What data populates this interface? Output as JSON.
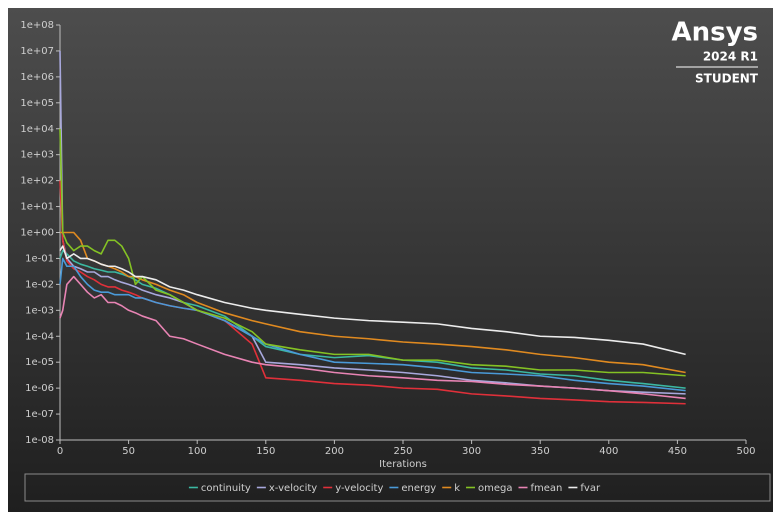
{
  "chart_data": {
    "type": "line",
    "x_label": "Iterations",
    "log_y": true,
    "grid": false,
    "xlim": [
      0,
      500
    ],
    "xticks": [
      0,
      50,
      100,
      150,
      200,
      250,
      300,
      350,
      400,
      450,
      500
    ],
    "ylim": [
      1e-08,
      100000000.0
    ],
    "yticks": [
      {
        "value": 1e-08,
        "label": "1e-08"
      },
      {
        "value": 1e-07,
        "label": "1e-07"
      },
      {
        "value": 1e-06,
        "label": "1e-06"
      },
      {
        "value": 1e-05,
        "label": "1e-05"
      },
      {
        "value": 0.0001,
        "label": "1e-04"
      },
      {
        "value": 0.001,
        "label": "1e-03"
      },
      {
        "value": 0.01,
        "label": "1e-02"
      },
      {
        "value": 0.1,
        "label": "1e-01"
      },
      {
        "value": 1,
        "label": "1e+00"
      },
      {
        "value": 10,
        "label": "1e+01"
      },
      {
        "value": 100,
        "label": "1e+02"
      },
      {
        "value": 1000,
        "label": "1e+03"
      },
      {
        "value": 10000,
        "label": "1e+04"
      },
      {
        "value": 100000,
        "label": "1e+05"
      },
      {
        "value": 1000000,
        "label": "1e+06"
      },
      {
        "value": 10000000,
        "label": "1e+07"
      },
      {
        "value": 100000000,
        "label": "1e+08"
      }
    ],
    "x": [
      0,
      2,
      5,
      10,
      15,
      20,
      25,
      30,
      35,
      40,
      45,
      50,
      55,
      60,
      70,
      80,
      90,
      100,
      120,
      140,
      150,
      175,
      200,
      225,
      250,
      275,
      300,
      325,
      350,
      375,
      400,
      425,
      456
    ],
    "series": [
      {
        "name": "continuity",
        "color": "#3bb8a2",
        "values": [
          0.1,
          0.2,
          0.15,
          0.08,
          0.06,
          0.05,
          0.04,
          0.035,
          0.03,
          0.03,
          0.025,
          0.02,
          0.015,
          0.01,
          0.007,
          0.004,
          0.002,
          0.0015,
          0.0006,
          0.0001,
          4e-05,
          2e-05,
          1.5e-05,
          1.8e-05,
          1.2e-05,
          1e-05,
          6e-06,
          5e-06,
          3.5e-06,
          3e-06,
          2e-06,
          1.5e-06,
          1e-06
        ]
      },
      {
        "name": "x-velocity",
        "color": "#a8a8dc",
        "values": [
          10000000,
          0.5,
          0.1,
          0.05,
          0.04,
          0.03,
          0.03,
          0.02,
          0.02,
          0.015,
          0.012,
          0.01,
          0.008,
          0.006,
          0.004,
          0.003,
          0.002,
          0.001,
          0.0004,
          0.0001,
          1e-05,
          8e-06,
          6e-06,
          5e-06,
          4e-06,
          3e-06,
          2e-06,
          1.6e-06,
          1.2e-06,
          1e-06,
          8e-07,
          7e-07,
          6e-07
        ]
      },
      {
        "name": "y-velocity",
        "color": "#e0303a",
        "values": [
          100,
          0.5,
          0.08,
          0.04,
          0.03,
          0.02,
          0.015,
          0.01,
          0.008,
          0.008,
          0.006,
          0.005,
          0.004,
          0.003,
          0.002,
          0.0015,
          0.0012,
          0.001,
          0.0004,
          5e-05,
          2.5e-06,
          2e-06,
          1.5e-06,
          1.3e-06,
          1e-06,
          9e-07,
          6e-07,
          5e-07,
          4e-07,
          3.5e-07,
          3e-07,
          2.8e-07,
          2.5e-07
        ]
      },
      {
        "name": "energy",
        "color": "#4a9ad8",
        "values": [
          0.01,
          0.1,
          0.05,
          0.05,
          0.02,
          0.01,
          0.006,
          0.005,
          0.005,
          0.004,
          0.004,
          0.004,
          0.003,
          0.003,
          0.002,
          0.0015,
          0.0012,
          0.001,
          0.0004,
          0.0001,
          5e-05,
          2e-05,
          1e-05,
          9e-06,
          8e-06,
          6e-06,
          4e-06,
          3.5e-06,
          3e-06,
          2e-06,
          1.5e-06,
          1.2e-06,
          8e-07
        ]
      },
      {
        "name": "k",
        "color": "#e08a20",
        "values": [
          1,
          1,
          1,
          1,
          0.5,
          0.1,
          0.08,
          0.06,
          0.05,
          0.04,
          0.03,
          0.02,
          0.02,
          0.015,
          0.01,
          0.006,
          0.004,
          0.002,
          0.0008,
          0.0004,
          0.0003,
          0.00015,
          0.0001,
          8e-05,
          6e-05,
          5e-05,
          4e-05,
          3e-05,
          2e-05,
          1.5e-05,
          1e-05,
          8e-06,
          4e-06
        ]
      },
      {
        "name": "omega",
        "color": "#84c224",
        "values": [
          10000,
          1,
          0.4,
          0.2,
          0.3,
          0.3,
          0.2,
          0.15,
          0.5,
          0.5,
          0.3,
          0.1,
          0.01,
          0.02,
          0.006,
          0.004,
          0.002,
          0.001,
          0.0005,
          0.00015,
          5e-05,
          3e-05,
          2e-05,
          2e-05,
          1.2e-05,
          1.2e-05,
          8e-06,
          7e-06,
          5e-06,
          5e-06,
          4e-06,
          4e-06,
          3e-06
        ]
      },
      {
        "name": "fmean",
        "color": "#e884b4",
        "values": [
          0.0005,
          0.001,
          0.01,
          0.02,
          0.01,
          0.005,
          0.003,
          0.004,
          0.002,
          0.002,
          0.0015,
          0.001,
          0.0008,
          0.0006,
          0.0004,
          0.0001,
          8e-05,
          5e-05,
          2e-05,
          1e-05,
          8e-06,
          6e-06,
          4e-06,
          3e-06,
          2.5e-06,
          2e-06,
          1.8e-06,
          1.4e-06,
          1.2e-06,
          1e-06,
          8e-07,
          6e-07,
          4e-07
        ]
      },
      {
        "name": "fvar",
        "color": "#ececec",
        "values": [
          0.2,
          0.3,
          0.1,
          0.15,
          0.1,
          0.1,
          0.08,
          0.06,
          0.05,
          0.05,
          0.04,
          0.03,
          0.02,
          0.02,
          0.015,
          0.008,
          0.006,
          0.004,
          0.002,
          0.0012,
          0.001,
          0.0007,
          0.0005,
          0.0004,
          0.00035,
          0.0003,
          0.0002,
          0.00015,
          0.0001,
          9e-05,
          7e-05,
          5e-05,
          2e-05
        ]
      }
    ]
  },
  "watermark": {
    "brand": "Ansys",
    "version": "2024 R1",
    "edition": "STUDENT"
  }
}
